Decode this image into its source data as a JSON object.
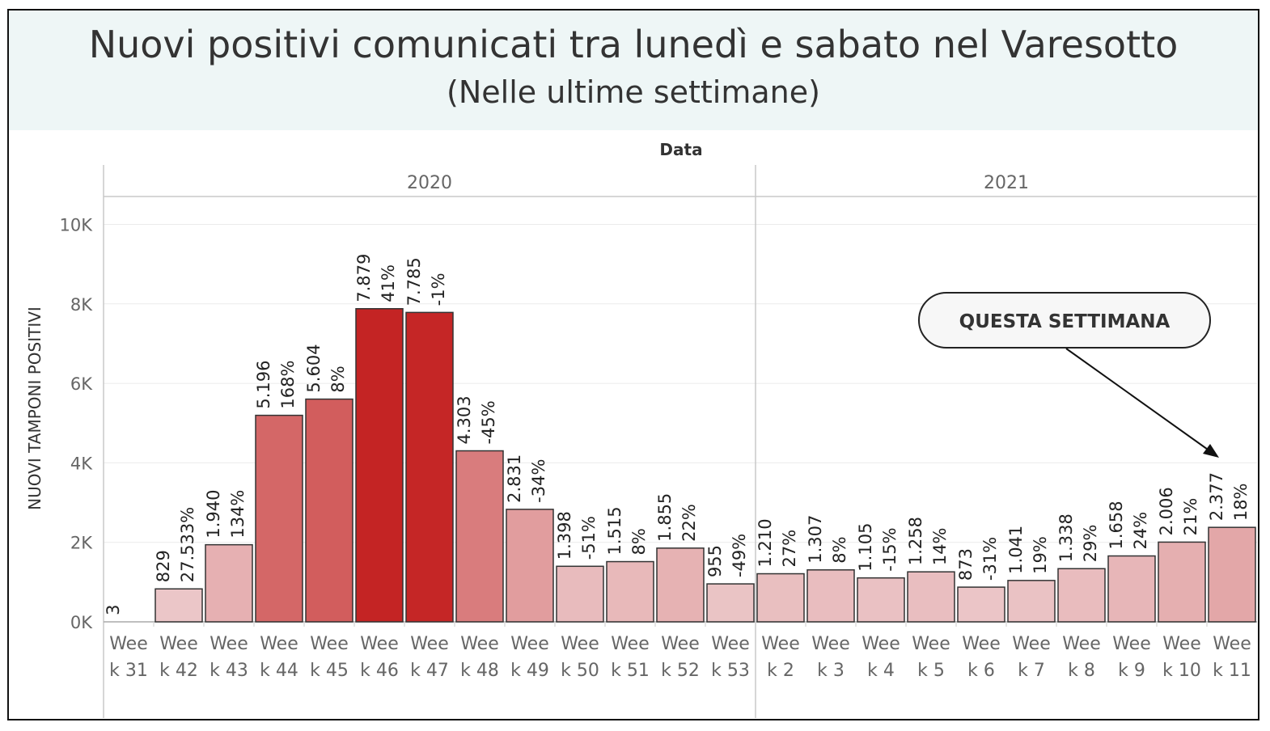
{
  "title": "Nuovi positivi comunicati tra lunedì e sabato nel Varesotto",
  "subtitle": "(Nelle ultime settimane)",
  "annotation": "QUESTA SETTIMANA",
  "colors": {
    "bar_stroke": "#333333",
    "low": "#eed3d5",
    "high": "#c42424"
  },
  "chart_data": {
    "type": "bar",
    "header": "Data",
    "ylabel": "NUOVI TAMPONI POSITIVI",
    "ylim": [
      0,
      10500
    ],
    "yticks": [
      "0K",
      "2K",
      "4K",
      "6K",
      "8K",
      "10K"
    ],
    "ytick_values": [
      0,
      2000,
      4000,
      6000,
      8000,
      10000
    ],
    "groups": [
      {
        "name": "2020",
        "categories": [
          [
            "Wee",
            "k 31"
          ],
          [
            "Wee",
            "k 42"
          ],
          [
            "Wee",
            "k 43"
          ],
          [
            "Wee",
            "k 44"
          ],
          [
            "Wee",
            "k 45"
          ],
          [
            "Wee",
            "k 46"
          ],
          [
            "Wee",
            "k 47"
          ],
          [
            "Wee",
            "k 48"
          ],
          [
            "Wee",
            "k 49"
          ],
          [
            "Wee",
            "k 50"
          ],
          [
            "Wee",
            "k 51"
          ],
          [
            "Wee",
            "k 52"
          ],
          [
            "Wee",
            "k 53"
          ]
        ],
        "values": [
          3,
          829,
          1940,
          5196,
          5604,
          7879,
          7785,
          4303,
          2831,
          1398,
          1515,
          1855,
          955
        ],
        "value_labels": [
          "3",
          "829",
          "1.940",
          "5.196",
          "5.604",
          "7.879",
          "7.785",
          "4.303",
          "2.831",
          "1.398",
          "1.515",
          "1.855",
          "955"
        ],
        "pct_labels": [
          "",
          "27.533%",
          "134%",
          "168%",
          "8%",
          "41%",
          "-1%",
          "-45%",
          "-34%",
          "-51%",
          "8%",
          "22%",
          "-49%"
        ]
      },
      {
        "name": "2021",
        "categories": [
          [
            "Wee",
            "k 2"
          ],
          [
            "Wee",
            "k 3"
          ],
          [
            "Wee",
            "k 4"
          ],
          [
            "Wee",
            "k 5"
          ],
          [
            "Wee",
            "k 6"
          ],
          [
            "Wee",
            "k 7"
          ],
          [
            "Wee",
            "k 8"
          ],
          [
            "Wee",
            "k 9"
          ],
          [
            "Wee",
            "k 10"
          ],
          [
            "Wee",
            "k 11"
          ]
        ],
        "values": [
          1210,
          1307,
          1105,
          1258,
          873,
          1041,
          1338,
          1658,
          2006,
          2377
        ],
        "value_labels": [
          "1.210",
          "1.307",
          "1.105",
          "1.258",
          "873",
          "1.041",
          "1.338",
          "1.658",
          "2.006",
          "2.377"
        ],
        "pct_labels": [
          "27%",
          "8%",
          "-15%",
          "14%",
          "-31%",
          "19%",
          "29%",
          "24%",
          "21%",
          "18%"
        ]
      }
    ],
    "grid": true,
    "legend": "none"
  }
}
